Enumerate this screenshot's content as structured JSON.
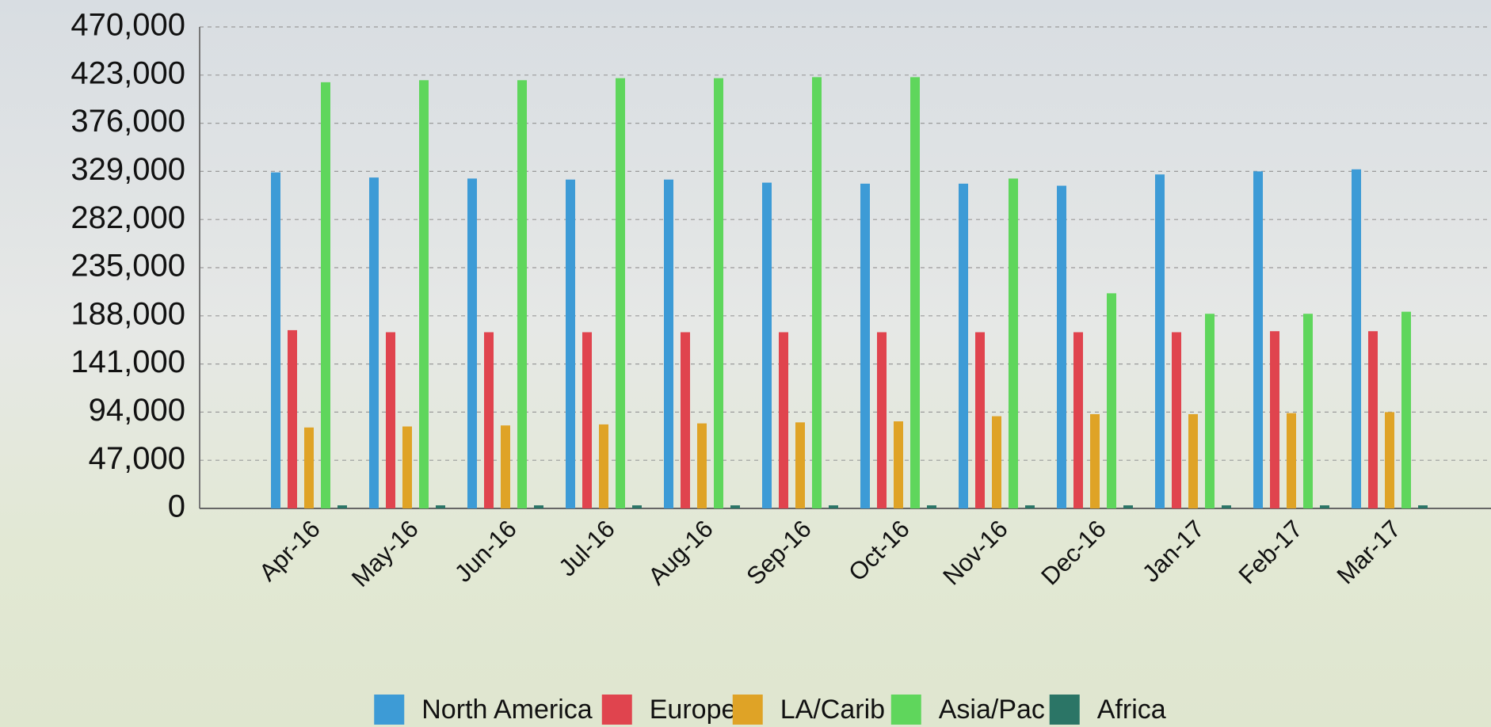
{
  "chart_data": {
    "type": "bar",
    "categories": [
      "Apr-16",
      "May-16",
      "Jun-16",
      "Jul-16",
      "Aug-16",
      "Sep-16",
      "Oct-16",
      "Nov-16",
      "Dec-16",
      "Jan-17",
      "Feb-17",
      "Mar-17"
    ],
    "series": [
      {
        "name": "North America",
        "color": "#3d9bd6",
        "values": [
          328000,
          323000,
          322000,
          321000,
          321000,
          318000,
          317000,
          317000,
          315000,
          326000,
          329000,
          331000
        ]
      },
      {
        "name": "Europe",
        "color": "#e0444e",
        "values": [
          174000,
          172000,
          172000,
          172000,
          172000,
          172000,
          172000,
          172000,
          172000,
          172000,
          173000,
          173000
        ]
      },
      {
        "name": "LA/Carib",
        "color": "#dfa326",
        "values": [
          79000,
          80000,
          81000,
          82000,
          83000,
          84000,
          85000,
          90000,
          92000,
          92000,
          93000,
          94000
        ]
      },
      {
        "name": "Asia/Pac",
        "color": "#5fd65c",
        "values": [
          416000,
          418000,
          418000,
          420000,
          420000,
          421000,
          421000,
          322000,
          210000,
          190000,
          190000,
          192000
        ]
      },
      {
        "name": "Africa",
        "color": "#2b7566",
        "values": [
          3000,
          3000,
          3000,
          3000,
          3000,
          3000,
          3000,
          3000,
          3000,
          3000,
          3000,
          3000
        ]
      }
    ],
    "ylim": [
      0,
      470000
    ],
    "yticks": [
      {
        "value": 0,
        "label": "0"
      },
      {
        "value": 47000,
        "label": "47,000"
      },
      {
        "value": 94000,
        "label": "94,000"
      },
      {
        "value": 141000,
        "label": "141,000"
      },
      {
        "value": 188000,
        "label": "188,000"
      },
      {
        "value": 235000,
        "label": "235,000"
      },
      {
        "value": 282000,
        "label": "282,000"
      },
      {
        "value": 329000,
        "label": "329,000"
      },
      {
        "value": 376000,
        "label": "376,000"
      },
      {
        "value": 423000,
        "label": "423,000"
      },
      {
        "value": 470000,
        "label": "470,000"
      }
    ],
    "grid": true,
    "legend": "bottom"
  }
}
